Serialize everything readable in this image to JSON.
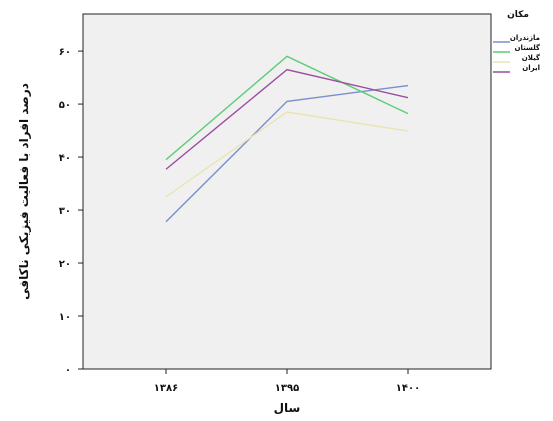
{
  "chart_data": {
    "type": "line",
    "title": "",
    "xlabel": "سال",
    "ylabel": "درصد افراد با فعالیت فیزیکی ناکافی",
    "categories": [
      "۱۳۸۶",
      "۱۳۹۵",
      "۱۴۰۰"
    ],
    "ylim": [
      0,
      67
    ],
    "y_ticks": [
      0,
      10,
      20,
      30,
      40,
      50,
      60
    ],
    "y_tick_labels": [
      "۰",
      "۱۰",
      "۲۰",
      "۳۰",
      "۴۰",
      "۵۰",
      "۶۰"
    ],
    "grid": false,
    "legend": {
      "title": "مکان",
      "placement": "top-right"
    },
    "series": [
      {
        "name": "مازندران",
        "color": "#7b8ed0",
        "values": [
          27.8,
          50.5,
          53.5
        ]
      },
      {
        "name": "گلستان",
        "color": "#5ccc78",
        "values": [
          39.5,
          59.0,
          48.2
        ]
      },
      {
        "name": "گیلان",
        "color": "#e8e5b2",
        "values": [
          32.5,
          48.5,
          44.9
        ]
      },
      {
        "name": "ایران",
        "color": "#9a4e9e",
        "values": [
          37.7,
          56.5,
          51.2
        ]
      }
    ]
  }
}
